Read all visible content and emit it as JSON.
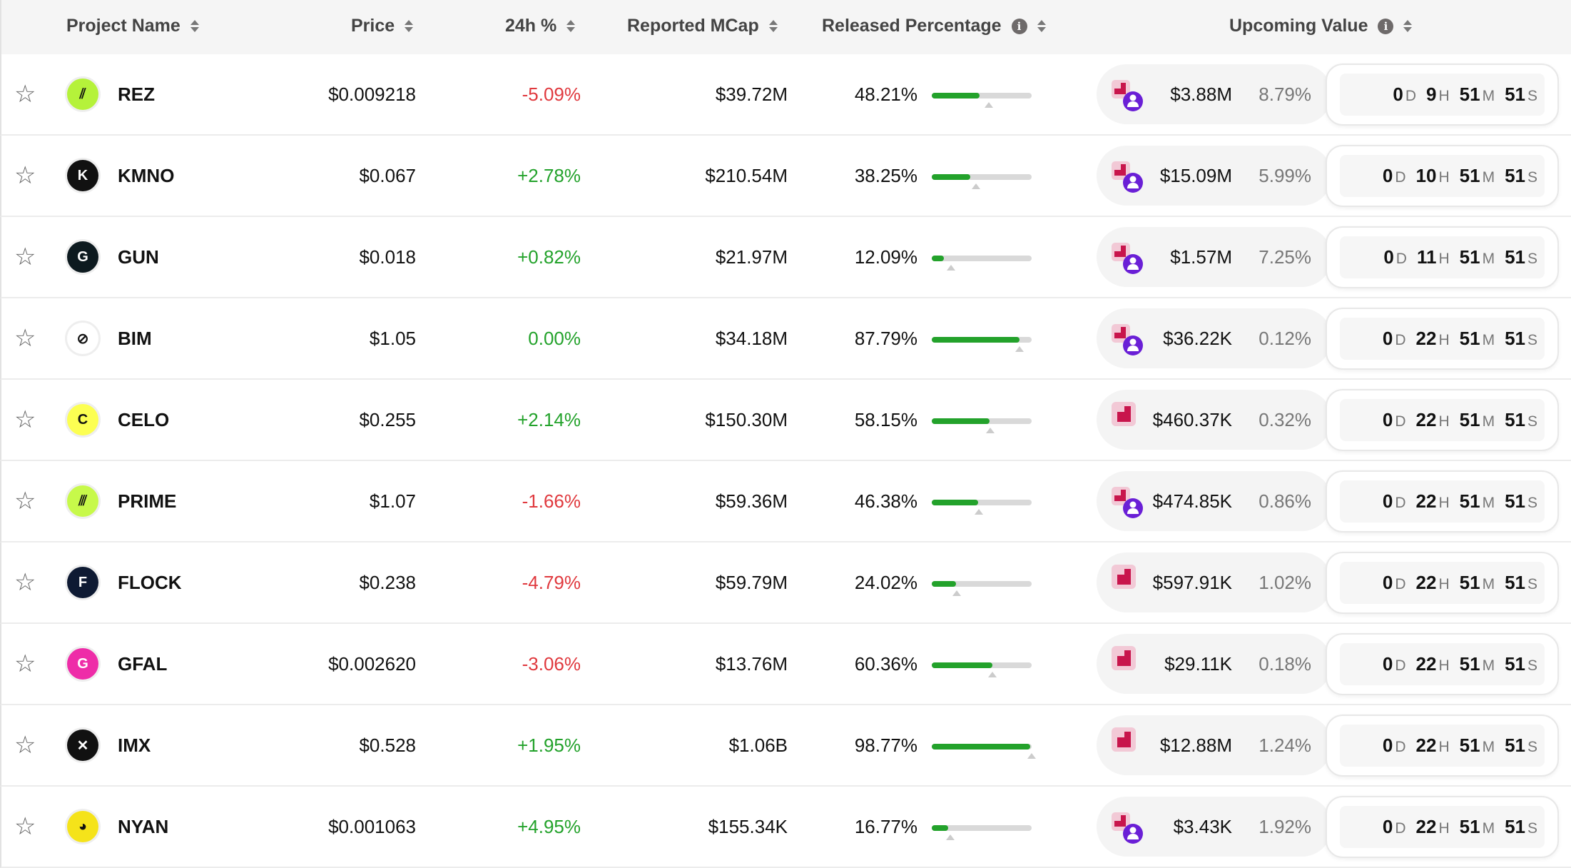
{
  "header": {
    "project_name": "Project Name",
    "price": "Price",
    "change_24h": "24h %",
    "reported_mcap": "Reported MCap",
    "released_percentage": "Released Percentage",
    "upcoming_value": "Upcoming Value",
    "info_glyph": "i"
  },
  "units": {
    "d": "D",
    "h": "H",
    "m": "M",
    "s": "S"
  },
  "star_glyph": "☆",
  "colors": {
    "positive": "#23a22b",
    "negative": "#e0393e",
    "neutral": "#23a22b",
    "bar_fill": "#23a22b",
    "unlock_icon": "#c8154c",
    "unlock_icon_bg": "#f2c9d6",
    "person_icon": "#6a1fd6"
  },
  "rows": [
    {
      "name": "REZ",
      "logo_glyph": "⫽",
      "logo_bg": "#b5f23a",
      "logo_fg": "#111",
      "price": "$0.009218",
      "change": "-5.09%",
      "dir": "neg",
      "mcap": "$39.72M",
      "released": "48.21%",
      "released_value": 48.21,
      "upcoming_icon": "unlock-person",
      "upcoming_value": "$3.88M",
      "upcoming_pct": "8.79%",
      "cd": {
        "d": "0",
        "h": "9",
        "m": "51",
        "s": "51"
      }
    },
    {
      "name": "KMNO",
      "logo_glyph": "K",
      "logo_bg": "#111",
      "logo_fg": "#fff",
      "price": "$0.067",
      "change": "+2.78%",
      "dir": "pos",
      "mcap": "$210.54M",
      "released": "38.25%",
      "released_value": 38.25,
      "upcoming_icon": "unlock-person",
      "upcoming_value": "$15.09M",
      "upcoming_pct": "5.99%",
      "cd": {
        "d": "0",
        "h": "10",
        "m": "51",
        "s": "51"
      }
    },
    {
      "name": "GUN",
      "logo_glyph": "G",
      "logo_bg": "#0d1a1f",
      "logo_fg": "#fff",
      "price": "$0.018",
      "change": "+0.82%",
      "dir": "pos",
      "mcap": "$21.97M",
      "released": "12.09%",
      "released_value": 12.09,
      "upcoming_icon": "unlock-person",
      "upcoming_value": "$1.57M",
      "upcoming_pct": "7.25%",
      "cd": {
        "d": "0",
        "h": "11",
        "m": "51",
        "s": "51"
      }
    },
    {
      "name": "BIM",
      "logo_glyph": "⊘",
      "logo_bg": "#fff",
      "logo_fg": "#111",
      "price": "$1.05",
      "change": "0.00%",
      "dir": "neu",
      "mcap": "$34.18M",
      "released": "87.79%",
      "released_value": 87.79,
      "upcoming_icon": "unlock-person",
      "upcoming_value": "$36.22K",
      "upcoming_pct": "0.12%",
      "cd": {
        "d": "0",
        "h": "22",
        "m": "51",
        "s": "51"
      }
    },
    {
      "name": "CELO",
      "logo_glyph": "C",
      "logo_bg": "#fcff52",
      "logo_fg": "#111",
      "price": "$0.255",
      "change": "+2.14%",
      "dir": "pos",
      "mcap": "$150.30M",
      "released": "58.15%",
      "released_value": 58.15,
      "upcoming_icon": "unlock",
      "upcoming_value": "$460.37K",
      "upcoming_pct": "0.32%",
      "cd": {
        "d": "0",
        "h": "22",
        "m": "51",
        "s": "51"
      }
    },
    {
      "name": "PRIME",
      "logo_glyph": "⫻",
      "logo_bg": "#c7f94a",
      "logo_fg": "#111",
      "price": "$1.07",
      "change": "-1.66%",
      "dir": "neg",
      "mcap": "$59.36M",
      "released": "46.38%",
      "released_value": 46.38,
      "upcoming_icon": "unlock-person",
      "upcoming_value": "$474.85K",
      "upcoming_pct": "0.86%",
      "cd": {
        "d": "0",
        "h": "22",
        "m": "51",
        "s": "51"
      }
    },
    {
      "name": "FLOCK",
      "logo_glyph": "F",
      "logo_bg": "#0e1a33",
      "logo_fg": "#fff",
      "price": "$0.238",
      "change": "-4.79%",
      "dir": "neg",
      "mcap": "$59.79M",
      "released": "24.02%",
      "released_value": 24.02,
      "upcoming_icon": "unlock",
      "upcoming_value": "$597.91K",
      "upcoming_pct": "1.02%",
      "cd": {
        "d": "0",
        "h": "22",
        "m": "51",
        "s": "51"
      }
    },
    {
      "name": "GFAL",
      "logo_glyph": "G",
      "logo_bg": "#ee2ca8",
      "logo_fg": "#fff",
      "price": "$0.002620",
      "change": "-3.06%",
      "dir": "neg",
      "mcap": "$13.76M",
      "released": "60.36%",
      "released_value": 60.36,
      "upcoming_icon": "unlock",
      "upcoming_value": "$29.11K",
      "upcoming_pct": "0.18%",
      "cd": {
        "d": "0",
        "h": "22",
        "m": "51",
        "s": "51"
      }
    },
    {
      "name": "IMX",
      "logo_glyph": "✕",
      "logo_bg": "#111",
      "logo_fg": "#fff",
      "price": "$0.528",
      "change": "+1.95%",
      "dir": "pos",
      "mcap": "$1.06B",
      "released": "98.77%",
      "released_value": 98.77,
      "upcoming_icon": "unlock",
      "upcoming_value": "$12.88M",
      "upcoming_pct": "1.24%",
      "cd": {
        "d": "0",
        "h": "22",
        "m": "51",
        "s": "51"
      }
    },
    {
      "name": "NYAN",
      "logo_glyph": "◕",
      "logo_bg": "#f5e31a",
      "logo_fg": "#111",
      "price": "$0.001063",
      "change": "+4.95%",
      "dir": "pos",
      "mcap": "$155.34K",
      "released": "16.77%",
      "released_value": 16.77,
      "upcoming_icon": "unlock-person",
      "upcoming_value": "$3.43K",
      "upcoming_pct": "1.92%",
      "cd": {
        "d": "0",
        "h": "22",
        "m": "51",
        "s": "51"
      }
    }
  ]
}
